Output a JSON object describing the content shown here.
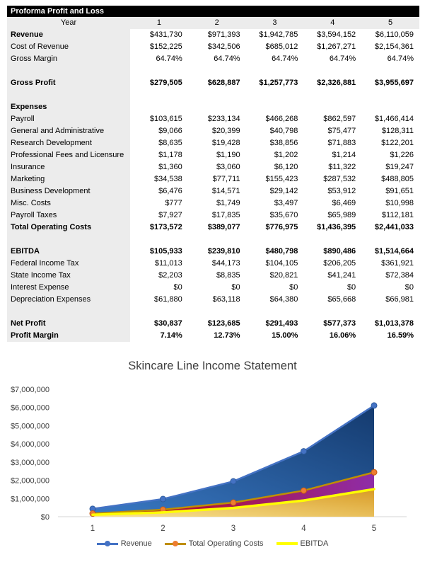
{
  "table": {
    "title": "Proforma Profit and Loss",
    "year_label": "Year",
    "year_columns": [
      "1",
      "2",
      "3",
      "4",
      "5"
    ],
    "rows": [
      {
        "label": "Revenue",
        "bold": true,
        "bold_values": false,
        "values": [
          "$431,730",
          "$971,393",
          "$1,942,785",
          "$3,594,152",
          "$6,110,059"
        ]
      },
      {
        "label": "Cost of Revenue",
        "bold": false,
        "bold_values": false,
        "values": [
          "$152,225",
          "$342,506",
          "$685,012",
          "$1,267,271",
          "$2,154,361"
        ]
      },
      {
        "label": "Gross Margin",
        "bold": false,
        "bold_values": false,
        "values": [
          "64.74%",
          "64.74%",
          "64.74%",
          "64.74%",
          "64.74%"
        ]
      },
      {
        "label": "",
        "bold": false,
        "bold_values": false,
        "values": null
      },
      {
        "label": "Gross Profit",
        "bold": true,
        "bold_values": true,
        "values": [
          "$279,505",
          "$628,887",
          "$1,257,773",
          "$2,326,881",
          "$3,955,697"
        ]
      },
      {
        "label": "",
        "bold": false,
        "bold_values": false,
        "values": null
      },
      {
        "label": "Expenses",
        "bold": true,
        "bold_values": false,
        "values": null
      },
      {
        "label": "Payroll",
        "bold": false,
        "bold_values": false,
        "values": [
          "$103,615",
          "$233,134",
          "$466,268",
          "$862,597",
          "$1,466,414"
        ]
      },
      {
        "label": "General and Administrative",
        "bold": false,
        "bold_values": false,
        "values": [
          "$9,066",
          "$20,399",
          "$40,798",
          "$75,477",
          "$128,311"
        ]
      },
      {
        "label": "Research Development",
        "bold": false,
        "bold_values": false,
        "values": [
          "$8,635",
          "$19,428",
          "$38,856",
          "$71,883",
          "$122,201"
        ]
      },
      {
        "label": "Professional Fees and Licensure",
        "bold": false,
        "bold_values": false,
        "values": [
          "$1,178",
          "$1,190",
          "$1,202",
          "$1,214",
          "$1,226"
        ]
      },
      {
        "label": "Insurance",
        "bold": false,
        "bold_values": false,
        "values": [
          "$1,360",
          "$3,060",
          "$6,120",
          "$11,322",
          "$19,247"
        ]
      },
      {
        "label": "Marketing",
        "bold": false,
        "bold_values": false,
        "values": [
          "$34,538",
          "$77,711",
          "$155,423",
          "$287,532",
          "$488,805"
        ]
      },
      {
        "label": "Business Development",
        "bold": false,
        "bold_values": false,
        "values": [
          "$6,476",
          "$14,571",
          "$29,142",
          "$53,912",
          "$91,651"
        ]
      },
      {
        "label": "Misc. Costs",
        "bold": false,
        "bold_values": false,
        "values": [
          "$777",
          "$1,749",
          "$3,497",
          "$6,469",
          "$10,998"
        ]
      },
      {
        "label": "Payroll Taxes",
        "bold": false,
        "bold_values": false,
        "values": [
          "$7,927",
          "$17,835",
          "$35,670",
          "$65,989",
          "$112,181"
        ]
      },
      {
        "label": "Total Operating Costs",
        "bold": true,
        "bold_values": true,
        "values": [
          "$173,572",
          "$389,077",
          "$776,975",
          "$1,436,395",
          "$2,441,033"
        ]
      },
      {
        "label": "",
        "bold": false,
        "bold_values": false,
        "values": null
      },
      {
        "label": "EBITDA",
        "bold": true,
        "bold_values": true,
        "values": [
          "$105,933",
          "$239,810",
          "$480,798",
          "$890,486",
          "$1,514,664"
        ]
      },
      {
        "label": "Federal Income Tax",
        "bold": false,
        "bold_values": false,
        "values": [
          "$11,013",
          "$44,173",
          "$104,105",
          "$206,205",
          "$361,921"
        ]
      },
      {
        "label": "State Income Tax",
        "bold": false,
        "bold_values": false,
        "values": [
          "$2,203",
          "$8,835",
          "$20,821",
          "$41,241",
          "$72,384"
        ]
      },
      {
        "label": "Interest Expense",
        "bold": false,
        "bold_values": false,
        "values": [
          "$0",
          "$0",
          "$0",
          "$0",
          "$0"
        ]
      },
      {
        "label": "Depreciation Expenses",
        "bold": false,
        "bold_values": false,
        "values": [
          "$61,880",
          "$63,118",
          "$64,380",
          "$65,668",
          "$66,981"
        ]
      },
      {
        "label": "",
        "bold": false,
        "bold_values": false,
        "values": null
      },
      {
        "label": "Net Profit",
        "bold": true,
        "bold_values": true,
        "values": [
          "$30,837",
          "$123,685",
          "$291,493",
          "$577,373",
          "$1,013,378"
        ]
      },
      {
        "label": "Profit Margin",
        "bold": true,
        "bold_values": true,
        "values": [
          "7.14%",
          "12.73%",
          "15.00%",
          "16.06%",
          "16.59%"
        ]
      }
    ],
    "colors": {
      "header_bar_bg": "#000000",
      "header_bar_text": "#FFFFFF",
      "label_band_bg": "#ECECEC"
    }
  },
  "chart_data": {
    "type": "area",
    "title": "Skincare Line Income Statement",
    "x_labels": [
      "1",
      "2",
      "3",
      "4",
      "5"
    ],
    "x": [
      1,
      2,
      3,
      4,
      5
    ],
    "ylim": [
      0,
      7000000
    ],
    "grid": false,
    "legend_position": "bottom",
    "y_axis": {
      "ticks": [
        "$0",
        "$1,000,000",
        "$2,000,000",
        "$3,000,000",
        "$4,000,000",
        "$5,000,000",
        "$6,000,000",
        "$7,000,000"
      ],
      "tick_values": [
        0,
        1000000,
        2000000,
        3000000,
        4000000,
        5000000,
        6000000,
        7000000
      ]
    },
    "series": [
      {
        "name": "Revenue",
        "values": [
          431730,
          971393,
          1942785,
          3594152,
          6110059
        ],
        "line_color": "#4472C4",
        "line_width": 2.5,
        "marker": true,
        "marker_color": "#4472C4",
        "marker_edge": "#2E5C9E",
        "fill_from": "#3A7AC5",
        "fill_to": "#143A6E",
        "legend_thick": false
      },
      {
        "name": "Total Operating Costs",
        "values": [
          173572,
          389077,
          776975,
          1436395,
          2441033
        ],
        "line_color": "#BF8F00",
        "line_width": 2.5,
        "marker": true,
        "marker_color": "#ED7D31",
        "marker_edge": "#C55A11",
        "fill_from": "#C00000",
        "fill_to": "#8E2DA8",
        "legend_thick": false
      },
      {
        "name": "EBITDA",
        "values": [
          105933,
          239810,
          480798,
          890486,
          1514664
        ],
        "line_color": "#FFFF00",
        "line_width": 3.5,
        "marker": false,
        "marker_color": "#FFFF00",
        "marker_edge": "#E6D000",
        "fill_from": "#F9E493",
        "fill_to": "#D89B25",
        "legend_thick": true
      }
    ]
  }
}
